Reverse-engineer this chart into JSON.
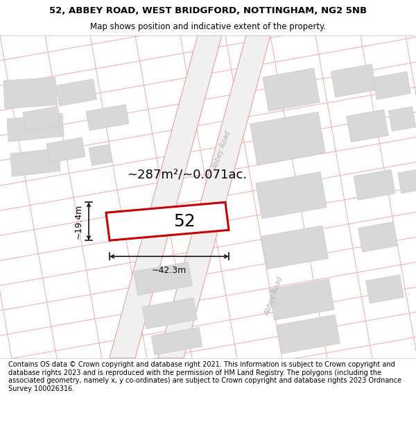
{
  "title_line1": "52, ABBEY ROAD, WEST BRIDGFORD, NOTTINGHAM, NG2 5NB",
  "title_line2": "Map shows position and indicative extent of the property.",
  "footer_text": "Contains OS data © Crown copyright and database right 2021. This information is subject to Crown copyright and database rights 2023 and is reproduced with the permission of HM Land Registry. The polygons (including the associated geometry, namely x, y co-ordinates) are subject to Crown copyright and database rights 2023 Ordnance Survey 100026316.",
  "area_label": "~287m²/~0.071ac.",
  "width_label": "~42.3m",
  "height_label": "~19.4m",
  "plot_number": "52",
  "map_bg": "#f7f7f7",
  "road_line_color": "#f0aaaa",
  "road_fill": "#f0f0f0",
  "road_edge": "#e8a0a0",
  "building_fill": "#d8d8d8",
  "building_edge": "#cccccc",
  "plot_fill": "#ffffff",
  "plot_edge": "#cc0000",
  "road_label_color": "#b0b0b0",
  "title_fs": 9.5,
  "subtitle_fs": 8.5,
  "footer_fs": 7.0,
  "area_fs": 13,
  "dim_fs": 9,
  "plot_num_fs": 18
}
